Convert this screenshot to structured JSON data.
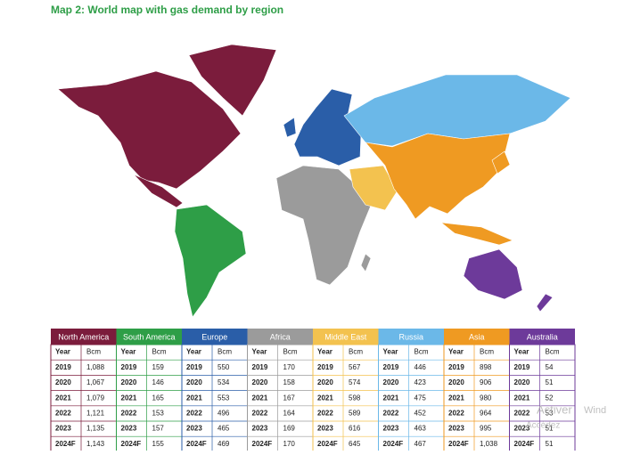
{
  "header": {
    "title": "Map 2: World map with gas demand by region"
  },
  "columns": [
    "Year",
    "Bcm"
  ],
  "regions": [
    {
      "name": "North America",
      "color": "#7b1c3c",
      "rows": [
        [
          "2019",
          "1,088"
        ],
        [
          "2020",
          "1,067"
        ],
        [
          "2021",
          "1,079"
        ],
        [
          "2022",
          "1,121"
        ],
        [
          "2023",
          "1,135"
        ],
        [
          "2024F",
          "1,143"
        ]
      ]
    },
    {
      "name": "South America",
      "color": "#2e9e47",
      "rows": [
        [
          "2019",
          "159"
        ],
        [
          "2020",
          "146"
        ],
        [
          "2021",
          "165"
        ],
        [
          "2022",
          "153"
        ],
        [
          "2023",
          "157"
        ],
        [
          "2024F",
          "155"
        ]
      ]
    },
    {
      "name": "Europe",
      "color": "#2a5ea8",
      "rows": [
        [
          "2019",
          "550"
        ],
        [
          "2020",
          "534"
        ],
        [
          "2021",
          "553"
        ],
        [
          "2022",
          "496"
        ],
        [
          "2023",
          "465"
        ],
        [
          "2024F",
          "469"
        ]
      ]
    },
    {
      "name": "Africa",
      "color": "#9b9b9b",
      "rows": [
        [
          "2019",
          "170"
        ],
        [
          "2020",
          "158"
        ],
        [
          "2021",
          "167"
        ],
        [
          "2022",
          "164"
        ],
        [
          "2023",
          "169"
        ],
        [
          "2024F",
          "170"
        ]
      ]
    },
    {
      "name": "Middle East",
      "color": "#f3c24f",
      "rows": [
        [
          "2019",
          "567"
        ],
        [
          "2020",
          "574"
        ],
        [
          "2021",
          "598"
        ],
        [
          "2022",
          "589"
        ],
        [
          "2023",
          "616"
        ],
        [
          "2024F",
          "645"
        ]
      ]
    },
    {
      "name": "Russia",
      "color": "#6bb8e8",
      "rows": [
        [
          "2019",
          "446"
        ],
        [
          "2020",
          "423"
        ],
        [
          "2021",
          "475"
        ],
        [
          "2022",
          "452"
        ],
        [
          "2023",
          "463"
        ],
        [
          "2024F",
          "467"
        ]
      ]
    },
    {
      "name": "Asia",
      "color": "#ef9a22",
      "rows": [
        [
          "2019",
          "898"
        ],
        [
          "2020",
          "906"
        ],
        [
          "2021",
          "980"
        ],
        [
          "2022",
          "964"
        ],
        [
          "2023",
          "995"
        ],
        [
          "2024F",
          "1,038"
        ]
      ]
    },
    {
      "name": "Australia",
      "color": "#6d3a9a",
      "rows": [
        [
          "2019",
          "54"
        ],
        [
          "2020",
          "51"
        ],
        [
          "2021",
          "52"
        ],
        [
          "2022",
          "53"
        ],
        [
          "2023",
          "51"
        ],
        [
          "2024F",
          "51"
        ]
      ]
    }
  ],
  "watermark": [
    "Activer",
    "Accédez",
    "Wind"
  ]
}
